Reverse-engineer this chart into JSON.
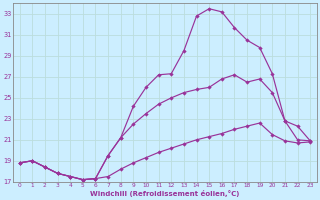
{
  "xlabel": "Windchill (Refroidissement éolien,°C)",
  "bg_color": "#cceeff",
  "line_color": "#993399",
  "grid_color": "#bbdddd",
  "xlim": [
    -0.5,
    23.5
  ],
  "ylim": [
    17,
    34
  ],
  "yticks": [
    17,
    19,
    21,
    23,
    25,
    27,
    29,
    31,
    33
  ],
  "xticks": [
    0,
    1,
    2,
    3,
    4,
    5,
    6,
    7,
    8,
    9,
    10,
    11,
    12,
    13,
    14,
    15,
    16,
    17,
    18,
    19,
    20,
    21,
    22,
    23
  ],
  "line1_x": [
    0,
    1,
    2,
    3,
    4,
    5,
    6,
    7,
    8,
    9,
    10,
    11,
    12,
    13,
    14,
    15,
    16,
    17,
    18,
    19,
    20,
    21,
    22,
    23
  ],
  "line1_y": [
    18.8,
    19.0,
    18.4,
    17.8,
    17.5,
    17.2,
    17.3,
    17.5,
    18.2,
    18.8,
    19.3,
    19.8,
    20.2,
    20.6,
    21.0,
    21.3,
    21.6,
    22.0,
    22.3,
    22.6,
    21.5,
    20.9,
    20.7,
    20.8
  ],
  "line2_x": [
    0,
    1,
    2,
    3,
    4,
    5,
    6,
    7,
    8,
    9,
    10,
    11,
    12,
    13,
    14,
    15,
    16,
    17,
    18,
    19,
    20,
    21,
    22,
    23
  ],
  "line2_y": [
    18.8,
    19.0,
    18.4,
    17.8,
    17.5,
    17.2,
    17.3,
    19.5,
    21.2,
    22.5,
    23.5,
    24.4,
    25.0,
    25.5,
    25.8,
    26.0,
    26.8,
    27.2,
    26.5,
    26.8,
    25.5,
    22.8,
    22.3,
    20.9
  ],
  "line3_x": [
    0,
    1,
    2,
    3,
    4,
    5,
    6,
    7,
    8,
    9,
    10,
    11,
    12,
    13,
    14,
    15,
    16,
    17,
    18,
    19,
    20,
    21,
    22,
    23
  ],
  "line3_y": [
    18.8,
    19.0,
    18.4,
    17.8,
    17.5,
    17.2,
    17.3,
    19.5,
    21.2,
    24.2,
    26.0,
    27.2,
    27.3,
    29.5,
    32.8,
    33.5,
    33.2,
    31.7,
    30.5,
    29.8,
    27.3,
    22.8,
    21.0,
    20.9
  ]
}
